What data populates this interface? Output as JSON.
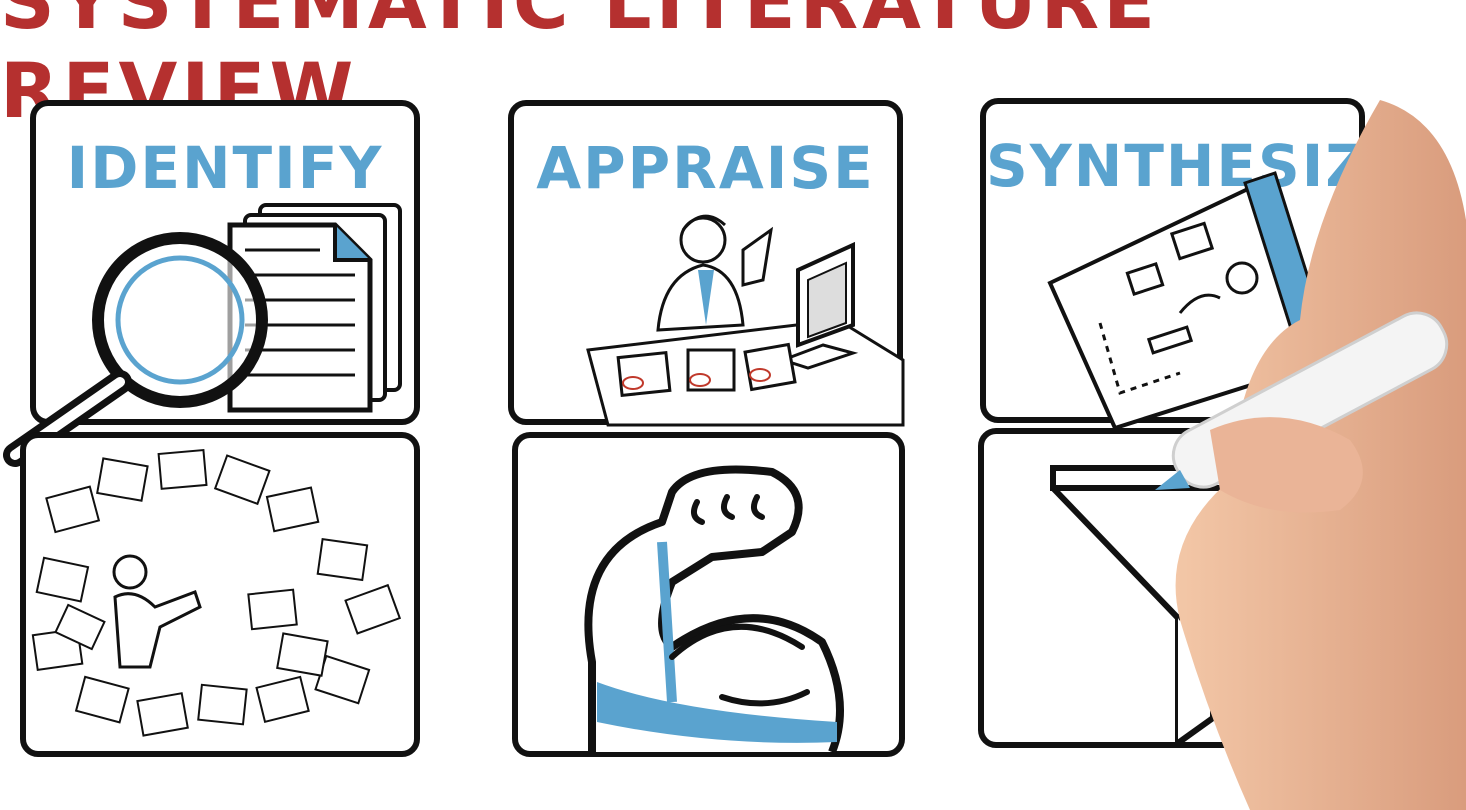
{
  "title": "SYSTEMATIC LITERATURE REVIEW",
  "steps": [
    {
      "label": "IDENTIFY"
    },
    {
      "label": "APPRAISE"
    },
    {
      "label": "SYNTHESIZE"
    }
  ],
  "colors": {
    "title": "#b5302f",
    "accent": "#5aa3cf",
    "ink": "#111111"
  }
}
